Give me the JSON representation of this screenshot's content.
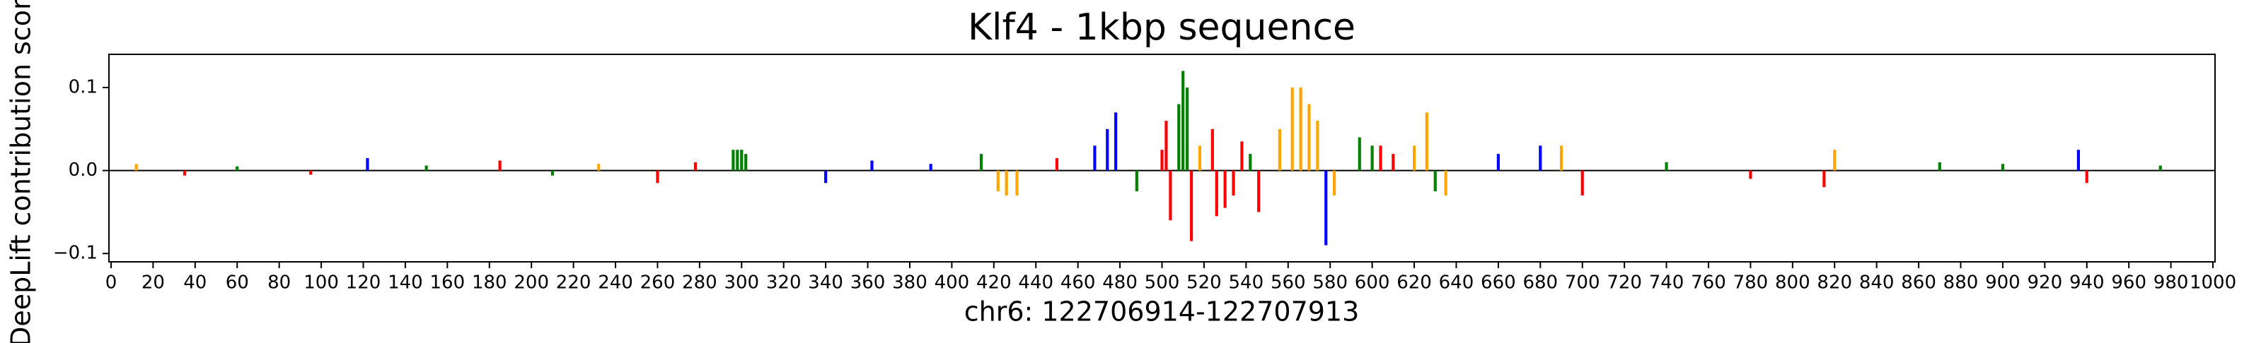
{
  "chart_data": {
    "type": "logo",
    "title": "Klf4 - 1kbp sequence",
    "xlabel": "chr6: 122706914-122707913",
    "ylabel": "DeepLift contribution scores",
    "x": [
      12,
      35,
      60,
      95,
      122,
      150,
      185,
      210,
      232,
      260,
      278,
      296,
      298,
      300,
      302,
      340,
      362,
      390,
      414,
      422,
      426,
      431,
      450,
      468,
      474,
      478,
      488,
      500,
      502,
      504,
      508,
      510,
      512,
      514,
      518,
      524,
      526,
      530,
      534,
      538,
      542,
      546,
      556,
      562,
      566,
      570,
      574,
      578,
      582,
      594,
      600,
      604,
      610,
      620,
      626,
      630,
      635,
      660,
      680,
      690,
      700,
      740,
      780,
      815,
      820,
      870,
      900,
      936,
      940,
      975
    ],
    "values": [
      0.008,
      -0.006,
      0.005,
      -0.005,
      0.015,
      0.006,
      0.012,
      -0.006,
      0.008,
      -0.015,
      0.01,
      0.025,
      0.025,
      0.025,
      0.02,
      -0.015,
      0.012,
      0.008,
      0.02,
      -0.025,
      -0.03,
      -0.03,
      0.015,
      0.03,
      0.05,
      0.07,
      -0.025,
      0.025,
      0.06,
      -0.06,
      0.08,
      0.12,
      0.1,
      -0.085,
      0.03,
      0.05,
      -0.055,
      -0.045,
      -0.03,
      0.035,
      0.02,
      -0.05,
      0.05,
      0.1,
      0.1,
      0.08,
      0.06,
      -0.09,
      -0.03,
      0.04,
      0.03,
      0.03,
      0.02,
      0.03,
      0.07,
      -0.025,
      -0.03,
      0.02,
      0.03,
      0.03,
      -0.03,
      0.01,
      -0.01,
      -0.02,
      0.025,
      0.01,
      0.008,
      0.025,
      -0.015,
      0.006
    ],
    "colors": [
      "orange",
      "red",
      "green",
      "red",
      "blue",
      "green",
      "red",
      "green",
      "orange",
      "red",
      "red",
      "green",
      "green",
      "green",
      "green",
      "blue",
      "blue",
      "blue",
      "green",
      "orange",
      "orange",
      "orange",
      "red",
      "blue",
      "blue",
      "blue",
      "green",
      "red",
      "red",
      "red",
      "green",
      "green",
      "green",
      "red",
      "orange",
      "red",
      "red",
      "red",
      "red",
      "red",
      "green",
      "red",
      "orange",
      "orange",
      "orange",
      "orange",
      "orange",
      "blue",
      "orange",
      "green",
      "green",
      "red",
      "red",
      "orange",
      "orange",
      "green",
      "orange",
      "blue",
      "blue",
      "orange",
      "red",
      "green",
      "red",
      "red",
      "orange",
      "green",
      "green",
      "blue",
      "red",
      "green"
    ],
    "xlim": [
      -1,
      1001
    ],
    "ylim": [
      -0.11,
      0.14
    ],
    "xticks": [
      0,
      20,
      40,
      60,
      80,
      100,
      120,
      140,
      160,
      180,
      200,
      220,
      240,
      260,
      280,
      300,
      320,
      340,
      360,
      380,
      400,
      420,
      440,
      460,
      480,
      500,
      520,
      540,
      560,
      580,
      600,
      620,
      640,
      660,
      680,
      700,
      720,
      740,
      760,
      780,
      800,
      820,
      840,
      860,
      880,
      900,
      920,
      940,
      960,
      980,
      1000
    ],
    "yticks": [
      {
        "value": -0.1,
        "label": "−0.1"
      },
      {
        "value": 0,
        "label": "0.0"
      },
      0.1
    ]
  }
}
